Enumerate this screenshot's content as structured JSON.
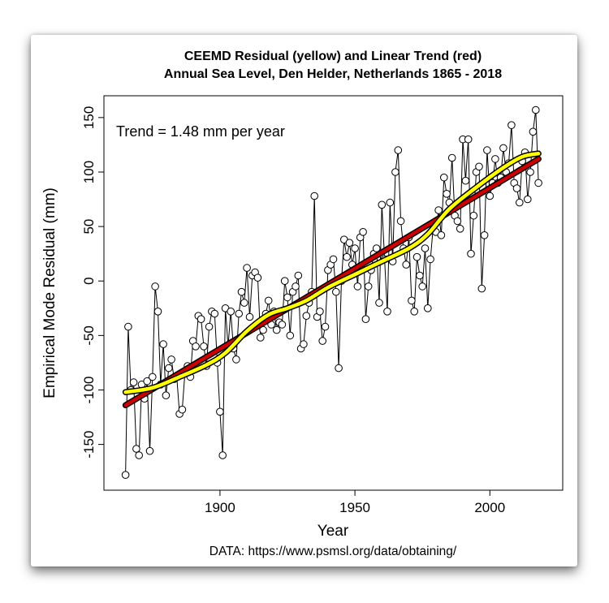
{
  "chart_data": {
    "type": "line",
    "title_line1": "CEEMD Residual (yellow) and Linear Trend (red)",
    "title_line2": "Annual Sea Level, Den Helder, Netherlands 1865 - 2018",
    "xlabel": "Year",
    "ylabel": "Empirical Mode Residual (mm)",
    "source": "DATA: https://www.psmsl.org/data/obtaining/",
    "annotation": "Trend = 1.48 mm per year",
    "xlim": [
      1857,
      2027
    ],
    "ylim": [
      -192,
      170
    ],
    "xticks": [
      1900,
      1950,
      2000
    ],
    "xtick_labels": [
      "1900",
      "1950",
      "2000"
    ],
    "yticks": [
      -150,
      -100,
      -50,
      0,
      50,
      100,
      150
    ],
    "ytick_labels": [
      "-150",
      "-100",
      "-50",
      "0",
      "50",
      "100",
      "150"
    ],
    "colors": {
      "observed": "#000000",
      "marker_fill": "#ffffff",
      "trend": "#cc0000",
      "residual": "#ffff00",
      "outline": "#000000"
    },
    "series": [
      {
        "name": "Observed residual",
        "x_start": 1865,
        "values": [
          -178,
          -42,
          -100,
          -93,
          -154,
          -160,
          -95,
          -108,
          -92,
          -156,
          -88,
          -5,
          -28,
          -95,
          -58,
          -105,
          -80,
          -72,
          -90,
          -88,
          -122,
          -118,
          -85,
          -78,
          -88,
          -55,
          -60,
          -32,
          -35,
          -60,
          -78,
          -42,
          -28,
          -30,
          -75,
          -120,
          -160,
          -25,
          -60,
          -28,
          -62,
          -72,
          -30,
          -10,
          -20,
          12,
          -33,
          5,
          8,
          3,
          -52,
          -45,
          -30,
          -18,
          -40,
          -28,
          -45,
          -38,
          -40,
          0,
          -15,
          -50,
          -10,
          -5,
          5,
          -62,
          -58,
          -32,
          -20,
          -10,
          78,
          -33,
          -28,
          -55,
          -42,
          10,
          15,
          20,
          -10,
          -80,
          0,
          38,
          22,
          35,
          15,
          30,
          -5,
          40,
          45,
          -35,
          -5,
          10,
          25,
          30,
          -20,
          70,
          20,
          -28,
          72,
          18,
          100,
          120,
          55,
          30,
          15,
          40,
          -18,
          -28,
          22,
          5,
          -5,
          30,
          -25,
          20,
          50,
          45,
          65,
          42,
          95,
          80,
          72,
          113,
          60,
          55,
          48,
          130,
          92,
          130,
          25,
          60,
          100,
          105,
          -7,
          42,
          120,
          78,
          90,
          112,
          90,
          95,
          122,
          100,
          108,
          143,
          90,
          85,
          72,
          110,
          118,
          75,
          100,
          137,
          157,
          90
        ]
      },
      {
        "name": "Linear trend",
        "points": [
          [
            1865,
            -114
          ],
          [
            2018,
            112
          ]
        ]
      },
      {
        "name": "CEEMD residual",
        "points": [
          [
            1865,
            -102
          ],
          [
            1875,
            -98
          ],
          [
            1885,
            -88
          ],
          [
            1895,
            -77
          ],
          [
            1902,
            -66
          ],
          [
            1910,
            -46
          ],
          [
            1918,
            -31
          ],
          [
            1925,
            -25
          ],
          [
            1932,
            -18
          ],
          [
            1940,
            -6
          ],
          [
            1950,
            6
          ],
          [
            1960,
            18
          ],
          [
            1970,
            30
          ],
          [
            1977,
            43
          ],
          [
            1985,
            66
          ],
          [
            1995,
            86
          ],
          [
            2005,
            104
          ],
          [
            2012,
            114
          ],
          [
            2018,
            117
          ]
        ]
      }
    ]
  }
}
